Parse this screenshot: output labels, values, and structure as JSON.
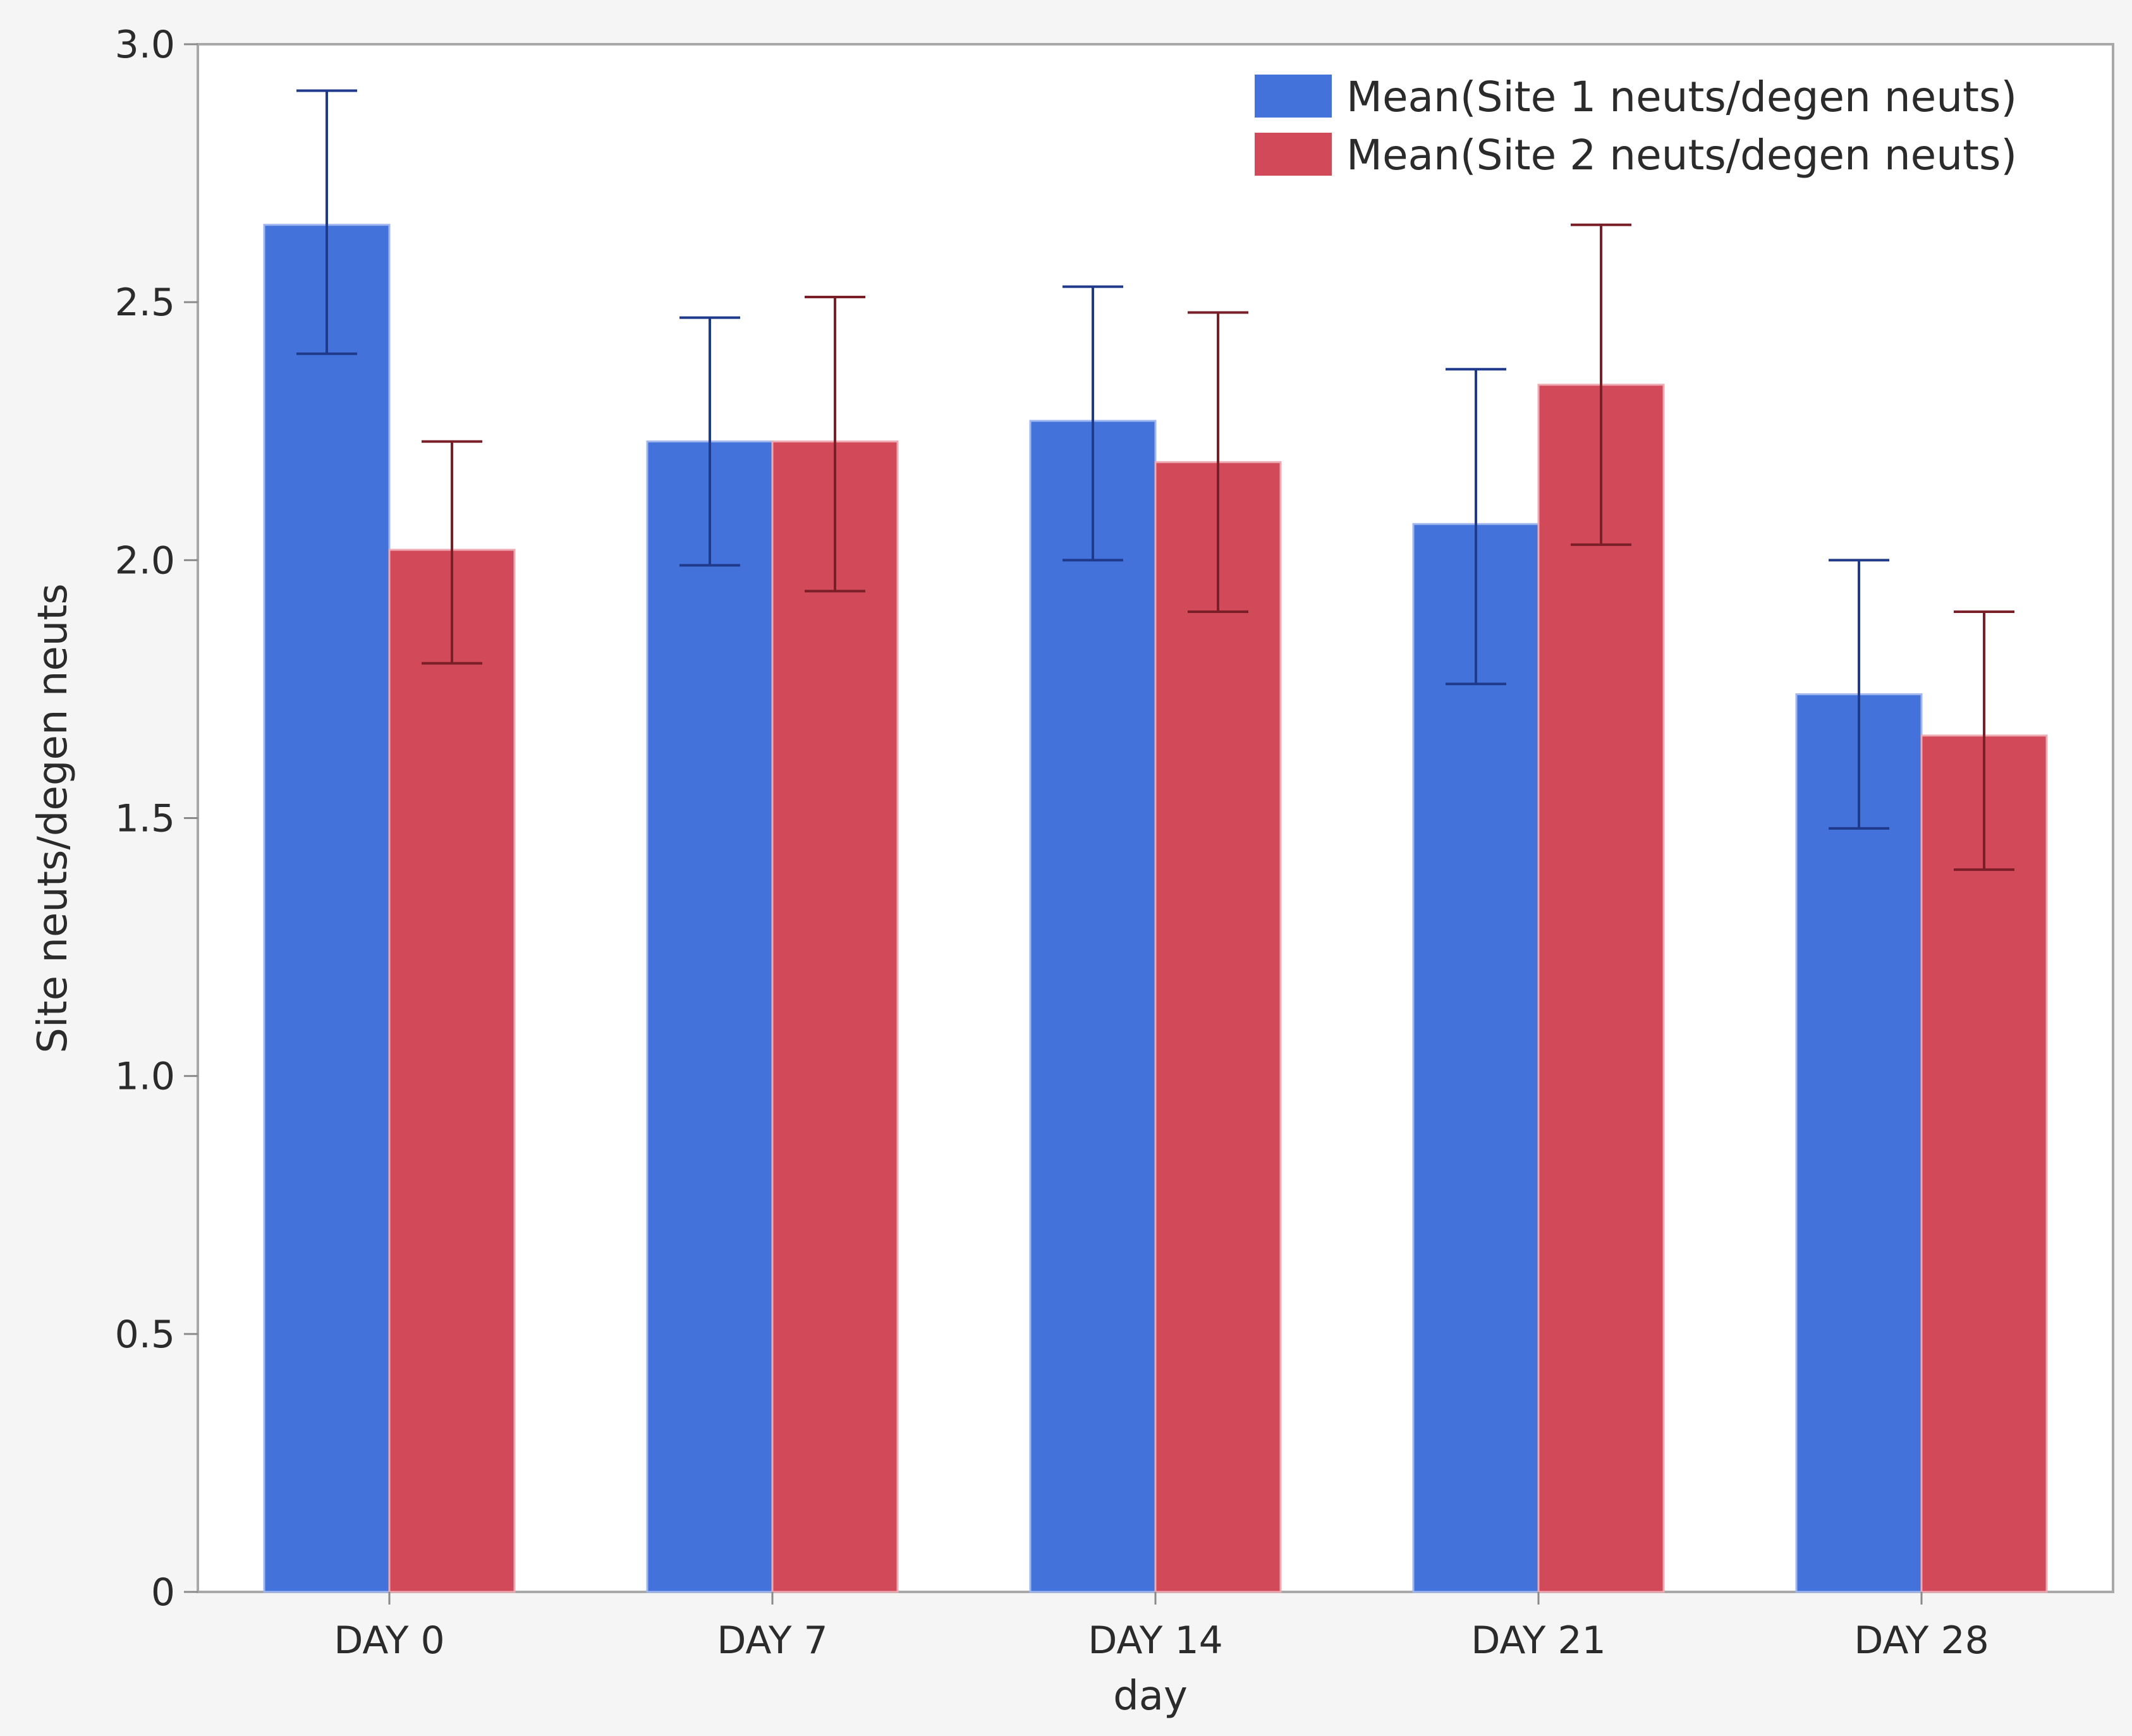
{
  "chart_data": {
    "type": "bar",
    "title": "",
    "xlabel": "day",
    "ylabel": "Site neuts/degen neuts",
    "ylim": [
      0,
      3.0
    ],
    "yticks": [
      "0",
      "0.5",
      "1.0",
      "1.5",
      "2.0",
      "2.5",
      "3.0"
    ],
    "ytick_values": [
      0,
      0.5,
      1.0,
      1.5,
      2.0,
      2.5,
      3.0
    ],
    "categories": [
      "DAY 0",
      "DAY 7",
      "DAY 14",
      "DAY 21",
      "DAY 28"
    ],
    "series": [
      {
        "name": "Mean(Site 1 neuts/degen neuts)",
        "color": "#4472db",
        "error_color": "#1f3a8a",
        "values": [
          2.65,
          2.23,
          2.27,
          2.07,
          1.74
        ],
        "error_low": [
          2.4,
          1.99,
          2.0,
          1.76,
          1.48
        ],
        "error_high": [
          2.91,
          2.47,
          2.53,
          2.37,
          2.0
        ]
      },
      {
        "name": "Mean(Site 2 neuts/degen neuts)",
        "color": "#d24a5a",
        "error_color": "#7a1f28",
        "values": [
          2.02,
          2.23,
          2.19,
          2.34,
          1.66
        ],
        "error_low": [
          1.8,
          1.94,
          1.9,
          2.03,
          1.4
        ],
        "error_high": [
          2.23,
          2.51,
          2.48,
          2.65,
          1.9
        ]
      }
    ],
    "legend_position": "top-right",
    "grid": false
  }
}
